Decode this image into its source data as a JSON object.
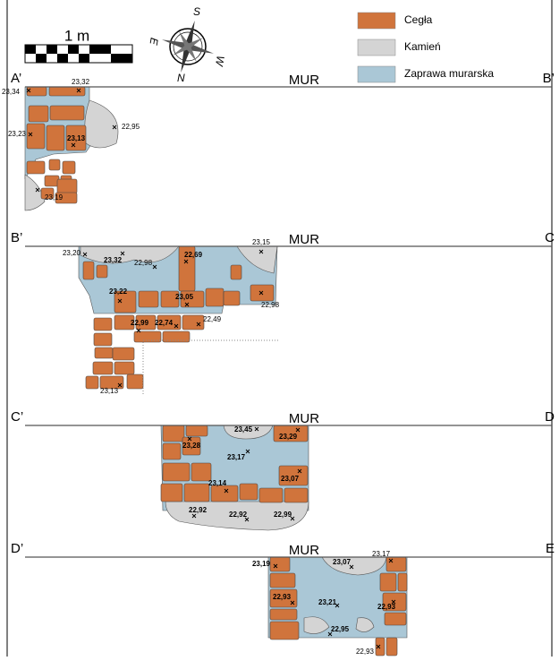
{
  "legend": [
    {
      "label": "Cegła",
      "color": "#d0743c"
    },
    {
      "label": "Kamień",
      "color": "#d4d4d4"
    },
    {
      "label": "Zaprawa murarska",
      "color": "#aac7d6"
    }
  ],
  "scale": {
    "label": "1 m"
  },
  "compass": {
    "north": "N",
    "south": "S",
    "east": "E",
    "west": "W"
  },
  "sections": [
    {
      "left": "A’",
      "right": "B’",
      "wall": "MUR",
      "elevations": [
        "23,34",
        "23,32",
        "23,23",
        "22,95",
        "23,13",
        "23,19"
      ]
    },
    {
      "left": "B’",
      "right": "C",
      "wall": "MUR",
      "elevations": [
        "23,20",
        "23,32",
        "22,98",
        "22,69",
        "23,15",
        "23,22",
        "23,05",
        "22,98",
        "22,99",
        "22,74",
        "22,49",
        "23,13"
      ]
    },
    {
      "left": "C’",
      "right": "D",
      "wall": "MUR",
      "elevations": [
        "23,45",
        "23,29",
        "23,28",
        "23,17",
        "23,07",
        "23,14",
        "22,92",
        "22,92",
        "22,99"
      ]
    },
    {
      "left": "D’",
      "right": "E",
      "wall": "MUR",
      "elevations": [
        "23,19",
        "23,07",
        "23,17",
        "22,93",
        "23,21",
        "22,93",
        "22,95",
        "22,93"
      ]
    }
  ]
}
